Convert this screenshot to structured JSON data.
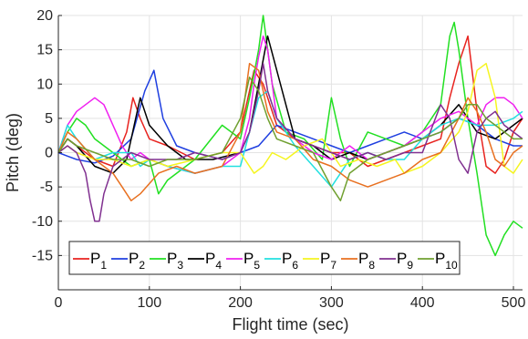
{
  "chart_data": {
    "type": "line",
    "xlabel": "Flight time (sec)",
    "ylabel": "Pitch (deg)",
    "xlim": [
      0,
      510
    ],
    "ylim": [
      -20,
      20
    ],
    "x_ticks": [
      0,
      100,
      200,
      300,
      400,
      500
    ],
    "y_ticks": [
      -15,
      -10,
      -5,
      0,
      5,
      10,
      15,
      20
    ],
    "grid": true,
    "legend_position": "bottom-left",
    "series": [
      {
        "name": "P",
        "sub": "1",
        "color": "#e8231f",
        "x": [
          0,
          10,
          20,
          40,
          60,
          75,
          82,
          90,
          100,
          120,
          150,
          180,
          200,
          215,
          225,
          240,
          260,
          280,
          300,
          320,
          340,
          360,
          380,
          400,
          420,
          430,
          440,
          450,
          460,
          470,
          480,
          490,
          500,
          510
        ],
        "y": [
          0,
          2,
          1,
          -1,
          -2,
          3,
          8,
          5,
          2,
          1,
          -1,
          0,
          3,
          12,
          10,
          4,
          2,
          1,
          0,
          0,
          -2,
          -1,
          0,
          1,
          2,
          8,
          13,
          17,
          6,
          -2,
          -3,
          -1,
          3,
          5
        ]
      },
      {
        "name": "P",
        "sub": "2",
        "color": "#1f3fe0",
        "x": [
          0,
          10,
          20,
          40,
          60,
          80,
          95,
          105,
          115,
          130,
          150,
          180,
          200,
          220,
          240,
          260,
          280,
          300,
          320,
          340,
          360,
          380,
          400,
          420,
          440,
          460,
          480,
          500,
          510
        ],
        "y": [
          0,
          -0.5,
          -1,
          -1.5,
          -0.5,
          2,
          9,
          12,
          5,
          1,
          0,
          -1,
          0,
          1,
          4,
          3,
          2,
          1,
          0,
          1,
          2,
          3,
          2,
          3,
          5,
          4,
          2,
          1,
          1
        ]
      },
      {
        "name": "P",
        "sub": "3",
        "color": "#22e022",
        "x": [
          0,
          10,
          20,
          30,
          40,
          60,
          80,
          100,
          110,
          120,
          150,
          180,
          200,
          210,
          220,
          225,
          235,
          250,
          270,
          290,
          300,
          310,
          320,
          340,
          360,
          380,
          400,
          420,
          430,
          435,
          440,
          450,
          460,
          470,
          480,
          490,
          500,
          510
        ],
        "y": [
          0,
          3,
          5,
          4,
          2,
          0,
          -2,
          -1,
          -6,
          -4,
          -1,
          4,
          2,
          8,
          15,
          20,
          10,
          3,
          2,
          -1,
          8,
          2,
          -2,
          3,
          2,
          1,
          3,
          7,
          17,
          19,
          15,
          5,
          -3,
          -12,
          -15,
          -12,
          -10,
          -11
        ]
      },
      {
        "name": "P",
        "sub": "4",
        "color": "#000000",
        "x": [
          0,
          10,
          20,
          40,
          60,
          75,
          85,
          90,
          100,
          120,
          140,
          170,
          200,
          210,
          220,
          230,
          240,
          260,
          280,
          300,
          320,
          340,
          360,
          380,
          400,
          420,
          440,
          460,
          480,
          500,
          510
        ],
        "y": [
          0,
          2,
          1,
          -2,
          -3,
          -1,
          5,
          8,
          4,
          1,
          -1,
          -1,
          0,
          3,
          10,
          17,
          12,
          2,
          1,
          -1,
          0,
          -1,
          0,
          1,
          2,
          4,
          7,
          3,
          2,
          4,
          5
        ]
      },
      {
        "name": "P",
        "sub": "5",
        "color": "#f020f0",
        "x": [
          0,
          10,
          20,
          30,
          40,
          50,
          60,
          70,
          80,
          90,
          100,
          120,
          150,
          180,
          200,
          210,
          215,
          220,
          225,
          230,
          235,
          240,
          260,
          280,
          300,
          320,
          340,
          360,
          380,
          400,
          420,
          440,
          460,
          470,
          480,
          490,
          500,
          510
        ],
        "y": [
          0,
          4,
          6,
          7,
          8,
          7,
          4,
          1,
          -1,
          0,
          -1,
          -2,
          -3,
          -2,
          0,
          5,
          10,
          14,
          17,
          15,
          10,
          5,
          2,
          0,
          -1,
          1,
          -1,
          0,
          1,
          3,
          5,
          6,
          4,
          7,
          8,
          8,
          7,
          5
        ]
      },
      {
        "name": "P",
        "sub": "6",
        "color": "#22e0e0",
        "x": [
          0,
          10,
          20,
          40,
          60,
          80,
          90,
          100,
          120,
          150,
          180,
          200,
          210,
          220,
          230,
          240,
          260,
          280,
          300,
          310,
          320,
          340,
          360,
          380,
          400,
          420,
          440,
          460,
          480,
          500,
          510
        ],
        "y": [
          0,
          4,
          2,
          -1,
          0,
          0,
          -2,
          -1,
          -2,
          -3,
          -2,
          -2,
          3,
          8,
          9,
          5,
          1,
          -2,
          -5,
          -3,
          -1,
          0,
          -1,
          -1,
          2,
          4,
          5,
          4,
          4,
          5,
          6
        ]
      },
      {
        "name": "P",
        "sub": "7",
        "color": "#f5f520",
        "x": [
          0,
          10,
          20,
          40,
          60,
          80,
          100,
          120,
          150,
          180,
          200,
          215,
          225,
          235,
          250,
          270,
          290,
          310,
          330,
          350,
          370,
          380,
          400,
          420,
          440,
          450,
          460,
          470,
          480,
          490,
          500,
          510
        ],
        "y": [
          0,
          1,
          0,
          -1,
          -1,
          -2,
          -1,
          -2,
          -1,
          0,
          0,
          -3,
          -2,
          0,
          -1,
          1,
          2,
          -2,
          -1,
          -2,
          -1,
          -3,
          -2,
          0,
          3,
          6,
          12,
          13,
          8,
          -2,
          -3,
          -1
        ]
      },
      {
        "name": "P",
        "sub": "8",
        "color": "#e87020",
        "x": [
          0,
          10,
          20,
          40,
          60,
          70,
          80,
          90,
          110,
          130,
          150,
          180,
          200,
          210,
          220,
          230,
          240,
          260,
          280,
          300,
          320,
          340,
          360,
          380,
          400,
          420,
          440,
          450,
          460,
          470,
          480,
          490,
          500,
          510
        ],
        "y": [
          0,
          3,
          2,
          -1,
          -3,
          -5,
          -7,
          -6,
          -3,
          -2,
          -3,
          -2,
          3,
          13,
          12,
          6,
          3,
          2,
          -1,
          -2,
          -4,
          -5,
          -4,
          -3,
          -1,
          0,
          5,
          8,
          6,
          3,
          -1,
          -2,
          0,
          1
        ]
      },
      {
        "name": "P",
        "sub": "9",
        "color": "#803090",
        "x": [
          0,
          10,
          20,
          30,
          35,
          40,
          45,
          50,
          60,
          80,
          100,
          130,
          150,
          180,
          200,
          210,
          220,
          225,
          230,
          240,
          260,
          280,
          300,
          320,
          340,
          360,
          380,
          400,
          420,
          430,
          440,
          450,
          460,
          470,
          480,
          490,
          500,
          510
        ],
        "y": [
          0,
          1,
          0,
          -3,
          -7,
          -10,
          -10,
          -6,
          -2,
          0,
          -1,
          -1,
          0,
          -1,
          0,
          3,
          9,
          13,
          9,
          5,
          2,
          1,
          0,
          -1,
          0,
          -1,
          0,
          0,
          7,
          5,
          -1,
          -3,
          3,
          5,
          6,
          4,
          3,
          2
        ]
      },
      {
        "name": "P",
        "sub": "10",
        "color": "#70a030",
        "x": [
          0,
          10,
          20,
          40,
          60,
          80,
          100,
          120,
          150,
          180,
          200,
          210,
          220,
          230,
          240,
          260,
          280,
          300,
          310,
          320,
          340,
          360,
          380,
          400,
          420,
          440,
          450,
          460,
          470,
          480,
          490,
          500,
          510
        ],
        "y": [
          0,
          2,
          1,
          0,
          -1,
          -1,
          -2,
          -1,
          -1,
          0,
          5,
          11,
          9,
          5,
          2,
          1,
          0,
          -5,
          -7,
          -3,
          -1,
          0,
          1,
          2,
          3,
          5,
          7,
          7,
          5,
          4,
          3,
          2,
          2
        ]
      }
    ]
  }
}
